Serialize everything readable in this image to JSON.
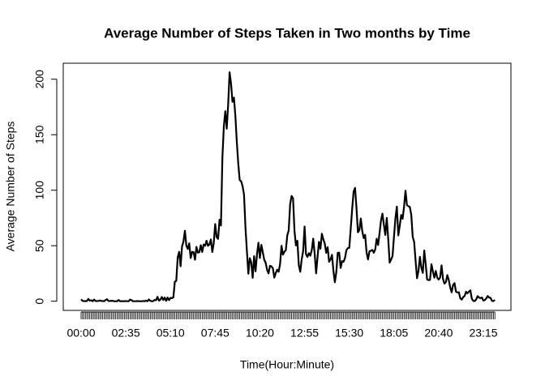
{
  "chart_data": {
    "type": "line",
    "title": "Average Number of Steps Taken in Two months by Time",
    "x_label": "Time(Hour:Minute)",
    "y_label": "Average Number of Steps",
    "color": "#000000",
    "ylim": [
      -8.25,
      214.4
    ],
    "yticks": [
      0,
      50,
      100,
      150,
      200
    ],
    "categories": [
      "00:00",
      null,
      null,
      null,
      null,
      null,
      null,
      null,
      null,
      null,
      null,
      null,
      null,
      null,
      null,
      null,
      null,
      null,
      null,
      null,
      null,
      null,
      null,
      null,
      null,
      null,
      null,
      null,
      null,
      null,
      null,
      "02:35",
      null,
      null,
      null,
      null,
      null,
      null,
      null,
      null,
      null,
      null,
      null,
      null,
      null,
      null,
      null,
      null,
      null,
      null,
      null,
      null,
      null,
      null,
      null,
      null,
      null,
      null,
      null,
      null,
      null,
      null,
      "05:10",
      null,
      null,
      null,
      null,
      null,
      null,
      null,
      null,
      null,
      null,
      null,
      null,
      null,
      null,
      null,
      null,
      null,
      null,
      null,
      null,
      null,
      null,
      null,
      null,
      null,
      null,
      null,
      null,
      null,
      null,
      "07:45",
      null,
      null,
      null,
      null,
      null,
      null,
      null,
      null,
      null,
      null,
      null,
      null,
      null,
      null,
      null,
      null,
      null,
      null,
      null,
      null,
      null,
      null,
      null,
      null,
      null,
      null,
      null,
      null,
      null,
      null,
      "10:20",
      null,
      null,
      null,
      null,
      null,
      null,
      null,
      null,
      null,
      null,
      null,
      null,
      null,
      null,
      null,
      null,
      null,
      null,
      null,
      null,
      null,
      null,
      null,
      null,
      null,
      null,
      null,
      null,
      null,
      null,
      "12:55",
      null,
      null,
      null,
      null,
      null,
      null,
      null,
      null,
      null,
      null,
      null,
      null,
      null,
      null,
      null,
      null,
      null,
      null,
      null,
      null,
      null,
      null,
      null,
      null,
      null,
      null,
      null,
      null,
      null,
      null,
      "15:30",
      null,
      null,
      null,
      null,
      null,
      null,
      null,
      null,
      null,
      null,
      null,
      null,
      null,
      null,
      null,
      null,
      null,
      null,
      null,
      null,
      null,
      null,
      null,
      null,
      null,
      null,
      null,
      null,
      null,
      null,
      "18:05",
      null,
      null,
      null,
      null,
      null,
      null,
      null,
      null,
      null,
      null,
      null,
      null,
      null,
      null,
      null,
      null,
      null,
      null,
      null,
      null,
      null,
      null,
      null,
      null,
      null,
      null,
      null,
      null,
      null,
      null,
      "20:40",
      null,
      null,
      null,
      null,
      null,
      null,
      null,
      null,
      null,
      null,
      null,
      null,
      null,
      null,
      null,
      null,
      null,
      null,
      null,
      null,
      null,
      null,
      null,
      null,
      null,
      null,
      null,
      null,
      null,
      null,
      "23:15",
      null,
      null,
      null,
      null,
      null,
      null,
      null,
      null
    ],
    "values": [
      1.7,
      0.3,
      0.1,
      0.2,
      0.1,
      2.1,
      0.5,
      0.9,
      0,
      1.5,
      0.3,
      0.1,
      0.3,
      0.7,
      0.2,
      0.3,
      0,
      1.1,
      1.8,
      0.2,
      0.2,
      0.4,
      0.3,
      0,
      0,
      0,
      1.1,
      0,
      0,
      0.1,
      0,
      0.2,
      0,
      0,
      1.5,
      0.9,
      0,
      0,
      0,
      0.2,
      0,
      0,
      0,
      0.2,
      0,
      0.6,
      0,
      1.6,
      0.4,
      0,
      0.1,
      1.2,
      0.9,
      4.0,
      0.6,
      1.4,
      3.8,
      1.1,
      3.3,
      0.3,
      3.3,
      1.0,
      3.0,
      2.8,
      3.5,
      17.6,
      18.3,
      39.5,
      44.5,
      31.5,
      49.3,
      53.8,
      63.5,
      50.0,
      47.1,
      52.2,
      38.9,
      44.5,
      44.2,
      37.4,
      49.0,
      43.8,
      44.2,
      50.5,
      44.4,
      51.1,
      50.0,
      54.5,
      49.9,
      51.0,
      55.7,
      44.3,
      52.3,
      69.5,
      57.8,
      56.2,
      73.4,
      68.2,
      129.4,
      157.5,
      171.2,
      155.4,
      177.3,
      206.2,
      195.9,
      179.6,
      183.4,
      167.0,
      143.5,
      124.0,
      109.1,
      108.1,
      103.7,
      96.0,
      66.2,
      45.2,
      24.8,
      38.8,
      35.0,
      21.1,
      40.6,
      27.0,
      42.4,
      52.7,
      38.9,
      50.8,
      44.3,
      37.4,
      34.7,
      28.3,
      25.1,
      31.9,
      31.4,
      29.7,
      21.3,
      25.5,
      28.4,
      26.5,
      33.4,
      50.0,
      42.0,
      44.6,
      46.0,
      59.2,
      63.9,
      87.6,
      94.8,
      92.8,
      63.4,
      50.2,
      54.5,
      32.4,
      26.5,
      37.7,
      45.1,
      67.3,
      42.3,
      39.9,
      43.3,
      41.0,
      46.2,
      56.4,
      42.8,
      25.1,
      40.0,
      53.5,
      47.3,
      60.8,
      55.8,
      52.0,
      43.6,
      48.7,
      35.5,
      37.5,
      41.8,
      27.5,
      17.1,
      26.1,
      43.6,
      43.8,
      30.0,
      36.1,
      35.5,
      38.8,
      46.0,
      47.8,
      48.1,
      65.3,
      82.9,
      98.7,
      102.1,
      84.0,
      62.1,
      64.1,
      74.5,
      63.2,
      56.9,
      59.8,
      43.9,
      37.6,
      45.0,
      45.5,
      46.2,
      43.7,
      46.6,
      56.3,
      50.7,
      61.2,
      72.7,
      78.9,
      68.9,
      59.7,
      75.1,
      56.5,
      34.8,
      37.5,
      40.7,
      58.0,
      74.7,
      85.3,
      59.3,
      67.8,
      77.7,
      74.2,
      85.3,
      99.5,
      86.6,
      85.6,
      84.9,
      77.8,
      58.0,
      53.4,
      36.3,
      20.7,
      27.4,
      40.0,
      30.2,
      25.5,
      45.7,
      33.5,
      19.6,
      19.0,
      19.3,
      33.3,
      26.8,
      21.2,
      27.3,
      21.3,
      19.5,
      21.3,
      32.3,
      20.2,
      15.9,
      17.2,
      23.5,
      19.2,
      12.5,
      8.0,
      14.7,
      16.3,
      8.7,
      7.8,
      8.1,
      2.6,
      1.5,
      3.7,
      4.8,
      8.5,
      7.1,
      8.7,
      9.8,
      2.2,
      0.3,
      0.1,
      1.6,
      4.6,
      3.3,
      2.8,
      3.3,
      0.6,
      1.0,
      2.5,
      4.7,
      3.3,
      3.0,
      0.3,
      0.2,
      1.1
    ]
  }
}
